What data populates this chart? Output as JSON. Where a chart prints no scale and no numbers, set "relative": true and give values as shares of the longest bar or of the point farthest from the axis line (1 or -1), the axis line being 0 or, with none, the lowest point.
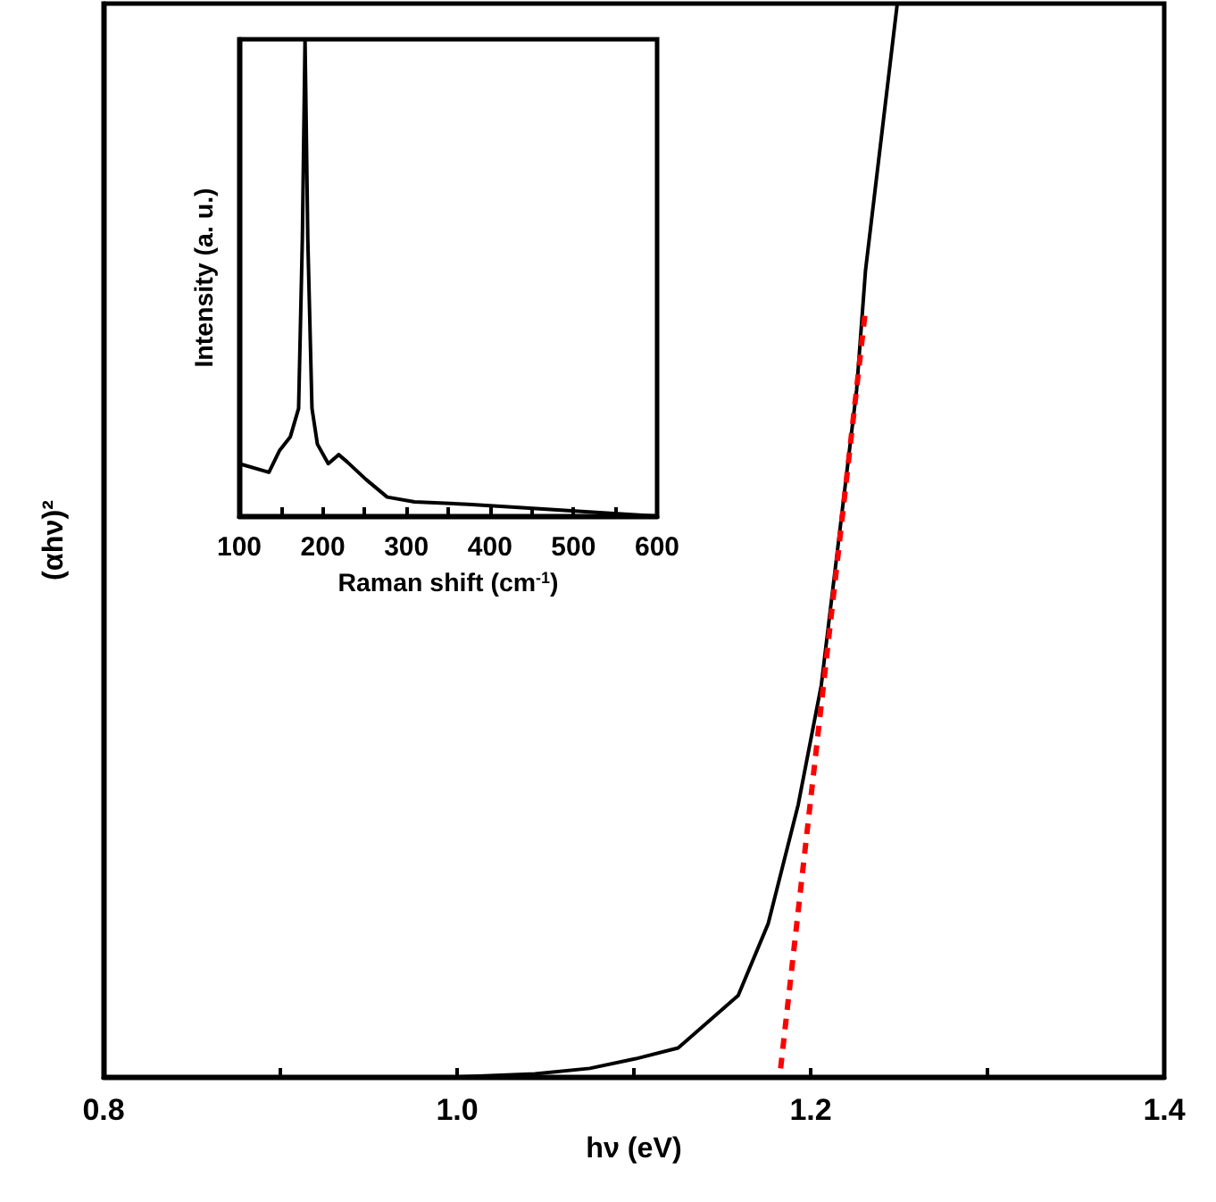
{
  "chart_data": [
    {
      "type": "line",
      "xlabel": "hν (eV)",
      "ylabel": "(αhν)²",
      "relative": true,
      "xlim": [
        0.8,
        1.4
      ],
      "xticks": [
        0.8,
        {
          "value": 0.9,
          "label": null
        },
        {
          "value": 1.0,
          "label": "1.0"
        },
        {
          "value": 1.1,
          "label": null
        },
        1.2,
        {
          "value": 1.3,
          "label": null
        },
        1.4
      ],
      "tick_labels": "x",
      "series": [
        {
          "color": "#000000",
          "x": [
            0.8,
            0.9,
            1.0,
            1.044,
            1.075,
            1.101,
            1.125,
            1.159,
            1.176,
            1.193,
            1.206,
            1.216,
            1.226,
            1.231,
            1.249
          ],
          "values": [
            0,
            0,
            0,
            0.003,
            0.008,
            0.017,
            0.027,
            0.076,
            0.143,
            0.254,
            0.365,
            0.502,
            0.64,
            0.751,
            1
          ]
        },
        {
          "color": "#ff0000",
          "line_style": "dashed",
          "x": [
            1.183,
            1.231
          ],
          "values": [
            0.008,
            0.715
          ]
        }
      ]
    },
    {
      "type": "line",
      "xlabel": "Raman shift (cm$^{-1}$)",
      "ylabel": "Intensity (a. u.)",
      "relative": true,
      "xlim": [
        100,
        600
      ],
      "xticks": [
        100,
        {
          "value": 150,
          "label": null
        },
        200,
        {
          "value": 250,
          "label": null
        },
        300,
        {
          "value": 350,
          "label": null
        },
        400,
        {
          "value": 450,
          "label": null
        },
        500,
        {
          "value": 550,
          "label": null
        },
        600
      ],
      "tick_labels": "x",
      "series": [
        {
          "color": "#000000",
          "x": [
            100,
            135.5,
            148,
            161,
            171,
            175.5,
            178.7,
            182,
            187,
            193.5,
            206.5,
            219,
            229,
            251.6,
            277,
            309.7,
            374,
            438.7,
            535.5,
            600
          ],
          "values": [
            0.11,
            0.092,
            0.137,
            0.166,
            0.226,
            0.582,
            1,
            0.582,
            0.226,
            0.151,
            0.11,
            0.129,
            0.114,
            0.077,
            0.04,
            0.03,
            0.025,
            0.018,
            0.007,
            0
          ]
        }
      ]
    }
  ]
}
